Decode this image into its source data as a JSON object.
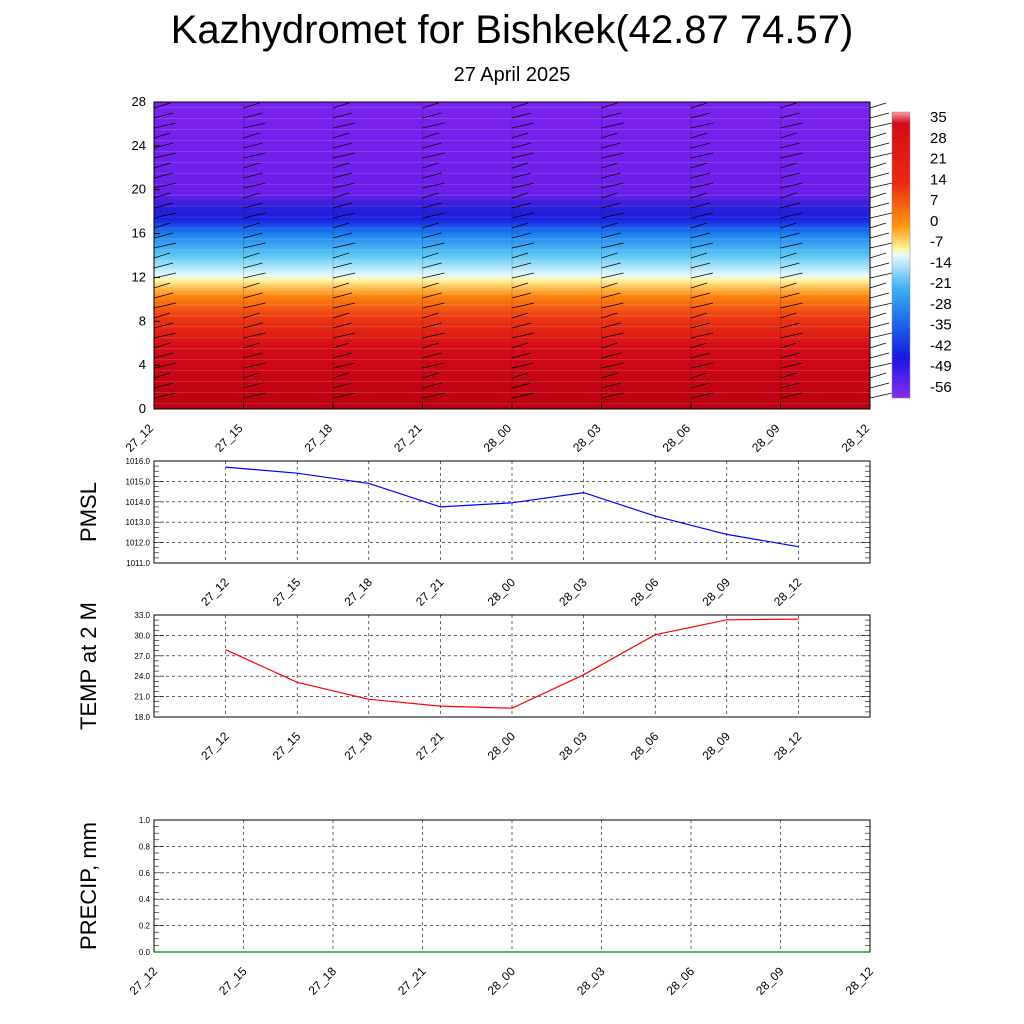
{
  "title": "Kazhydromet for Bishkek(42.87 74.57)",
  "subtitle": "27 April 2025",
  "time_labels": [
    "27_12",
    "27_15",
    "27_18",
    "27_21",
    "28_00",
    "28_03",
    "28_06",
    "28_09",
    "28_12"
  ],
  "chart_data": [
    {
      "id": "temperature-height",
      "type": "heatmap",
      "y_ticks": [
        "0",
        "4",
        "8",
        "12",
        "16",
        "20",
        "24",
        "28"
      ],
      "ylim": [
        0,
        28
      ],
      "colorbar_labels": [
        "35",
        "28",
        "21",
        "14",
        "7",
        "0",
        "-7",
        "-14",
        "-21",
        "-28",
        "-35",
        "-42",
        "-49",
        "-56"
      ],
      "colors": {
        "warm": "#c0001a",
        "cold": "#7a1ee8"
      }
    },
    {
      "id": "pmsl",
      "type": "line",
      "ylabel": "PMSL",
      "ylim": [
        1011.0,
        1016.0
      ],
      "y_ticks": [
        "1016.0",
        "1015.0",
        "1014.0",
        "1013.0",
        "1012.0",
        "1011.0"
      ],
      "x": [
        "27_12",
        "27_15",
        "27_18",
        "27_21",
        "28_00",
        "28_03",
        "28_06",
        "28_09",
        "28_12"
      ],
      "values": [
        1015.7,
        1015.4,
        1014.9,
        1013.75,
        1013.95,
        1014.45,
        1013.3,
        1012.4,
        1011.8
      ],
      "color": "#0000ff"
    },
    {
      "id": "temp-2m",
      "type": "line",
      "ylabel": "TEMP at 2 M",
      "ylim": [
        18.0,
        33.0
      ],
      "y_ticks": [
        "33.0",
        "30.0",
        "27.0",
        "24.0",
        "21.0",
        "18.0"
      ],
      "x": [
        "27_12",
        "27_15",
        "27_18",
        "27_21",
        "28_00",
        "28_03",
        "28_06",
        "28_09",
        "28_12"
      ],
      "values": [
        27.9,
        23.1,
        20.6,
        19.6,
        19.3,
        24.2,
        30.1,
        32.3,
        32.4
      ],
      "color": "#ff0000"
    },
    {
      "id": "precip",
      "type": "line",
      "ylabel": "PRECIP, mm",
      "ylim": [
        0.0,
        1.0
      ],
      "y_ticks": [
        "1.0",
        "0.8",
        "0.6",
        "0.4",
        "0.2",
        "0.0"
      ],
      "x": [
        "27_12",
        "27_15",
        "27_18",
        "27_21",
        "28_00",
        "28_03",
        "28_06",
        "28_09",
        "28_12"
      ],
      "values": [
        0,
        0,
        0,
        0,
        0,
        0,
        0,
        0,
        0
      ],
      "color": "#008000"
    }
  ]
}
